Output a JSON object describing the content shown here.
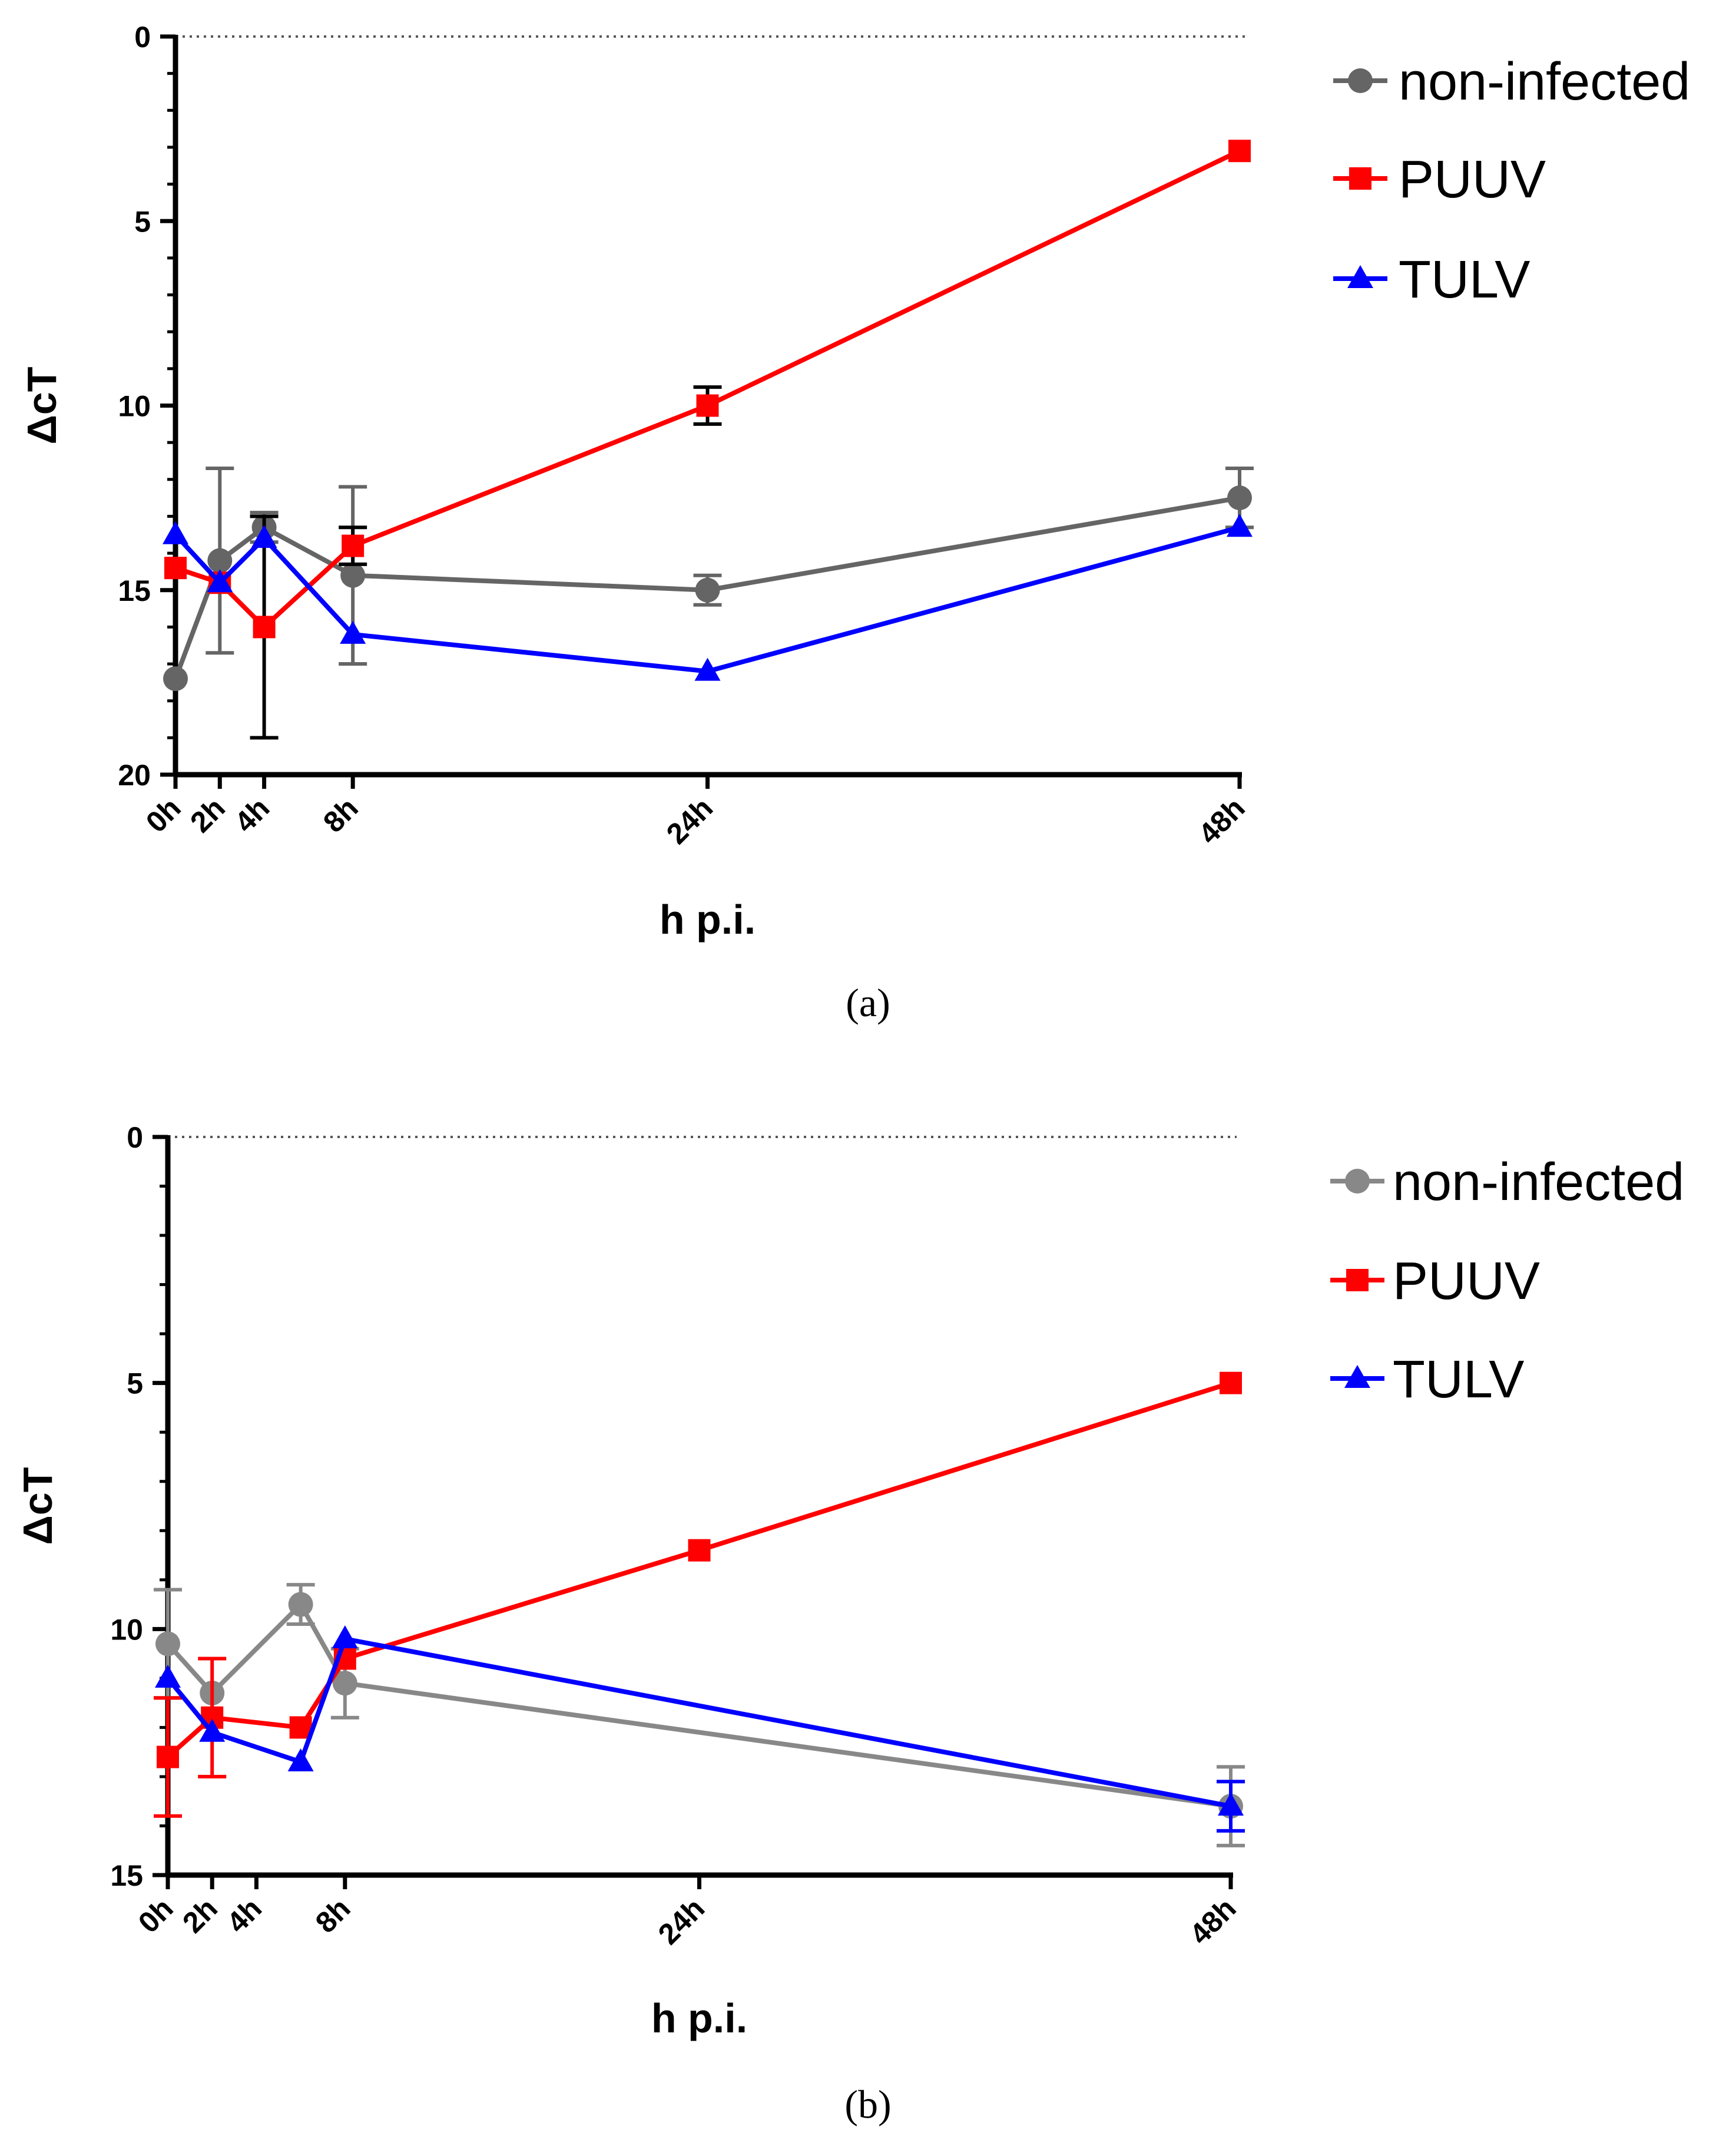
{
  "chart_data": [
    {
      "type": "line",
      "panel_label": "(a)",
      "ylabel": "ΔcT",
      "xlabel": "h p.i.",
      "y_inverted": true,
      "ylim": [
        0,
        20
      ],
      "yticks": [
        0,
        5,
        10,
        15,
        20
      ],
      "xlim": [
        0,
        48
      ],
      "xticks": [
        {
          "value": 0,
          "label": "0h"
        },
        {
          "value": 2,
          "label": "2h"
        },
        {
          "value": 4,
          "label": "4h"
        },
        {
          "value": 8,
          "label": "8h"
        },
        {
          "value": 24,
          "label": "24h"
        },
        {
          "value": 48,
          "label": "48h"
        }
      ],
      "reference_line": 0,
      "legend_position": "top-right",
      "series": [
        {
          "name": "non-infected",
          "color": "#656565",
          "marker": "circle",
          "x": [
            0,
            2,
            4,
            8,
            24,
            48
          ],
          "y": [
            17.4,
            14.2,
            13.3,
            14.6,
            15.0,
            12.5
          ],
          "err": [
            0,
            2.5,
            0.4,
            2.4,
            0.4,
            0.8
          ]
        },
        {
          "name": "PUUV",
          "color": "#ff0000",
          "marker": "square",
          "x": [
            0,
            2,
            4,
            8,
            24,
            48
          ],
          "y": [
            14.4,
            14.8,
            16.0,
            13.8,
            10.0,
            3.1
          ],
          "err": [
            0,
            0,
            3.0,
            0.5,
            0.5,
            0
          ]
        },
        {
          "name": "TULV",
          "color": "#0000ff",
          "marker": "triangle",
          "x": [
            0,
            2,
            4,
            8,
            24,
            48
          ],
          "y": [
            13.5,
            14.8,
            13.6,
            16.2,
            17.2,
            13.3
          ],
          "err": [
            0,
            0,
            0,
            0,
            0,
            0
          ]
        }
      ]
    },
    {
      "type": "line",
      "panel_label": "(b)",
      "ylabel": "ΔcT",
      "xlabel": "h p.i.",
      "y_inverted": true,
      "ylim": [
        0,
        15
      ],
      "yticks": [
        0,
        5,
        10,
        15
      ],
      "xlim": [
        0,
        48
      ],
      "xticks": [
        {
          "value": 0,
          "label": "0h"
        },
        {
          "value": 2,
          "label": "2h"
        },
        {
          "value": 4,
          "label": "4h"
        },
        {
          "value": 8,
          "label": "8h"
        },
        {
          "value": 24,
          "label": "24h"
        },
        {
          "value": 48,
          "label": "48h"
        }
      ],
      "reference_line": 0,
      "legend_position": "top-right",
      "series": [
        {
          "name": "non-infected",
          "color": "#888888",
          "marker": "circle",
          "x": [
            0,
            2,
            6,
            8,
            48
          ],
          "y": [
            10.3,
            11.3,
            9.5,
            11.1,
            13.6
          ],
          "err": [
            1.1,
            0,
            0.4,
            0.7,
            0.8
          ]
        },
        {
          "name": "PUUV",
          "color": "#ff0000",
          "marker": "square",
          "x": [
            0,
            2,
            6,
            8,
            24,
            48
          ],
          "y": [
            12.6,
            11.8,
            12.0,
            10.6,
            8.4,
            5.0
          ],
          "err": [
            1.2,
            1.2,
            0,
            0,
            0,
            0
          ]
        },
        {
          "name": "TULV",
          "color": "#0000ff",
          "marker": "triangle",
          "x": [
            0,
            2,
            6,
            8,
            48
          ],
          "y": [
            11.0,
            12.1,
            12.7,
            10.2,
            13.6
          ],
          "err": [
            0,
            0,
            0,
            0,
            0.5
          ]
        }
      ]
    }
  ]
}
